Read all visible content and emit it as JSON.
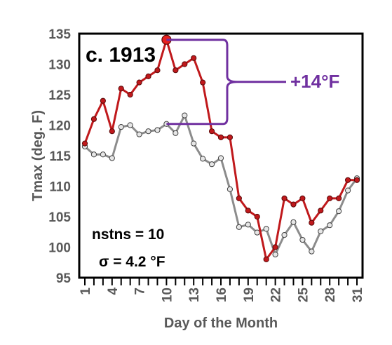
{
  "chart_data": {
    "type": "line",
    "xlabel": "Day of the Month",
    "ylabel": "Tmax (deg. F)",
    "xlim": [
      1,
      31
    ],
    "ylim": [
      95,
      135
    ],
    "x_ticks": [
      1,
      4,
      7,
      10,
      13,
      16,
      19,
      22,
      25,
      28,
      31
    ],
    "y_ticks": [
      95,
      100,
      105,
      110,
      115,
      120,
      125,
      130,
      135
    ],
    "grid": false,
    "x": [
      1,
      2,
      3,
      4,
      5,
      6,
      7,
      8,
      9,
      10,
      11,
      12,
      13,
      14,
      15,
      16,
      17,
      18,
      19,
      20,
      21,
      22,
      23,
      24,
      25,
      26,
      27,
      28,
      29,
      30,
      31
    ],
    "series": [
      {
        "color": "#c0191c",
        "values": [
          117,
          121,
          124,
          119,
          126,
          125,
          127,
          128,
          129,
          134,
          129,
          130,
          131,
          127,
          119,
          118,
          118,
          108,
          106,
          105,
          98,
          100,
          108,
          107,
          108,
          104,
          106,
          108,
          108,
          111,
          111
        ]
      },
      {
        "color": "#8c8c8c",
        "values": [
          116.5,
          115.2,
          115.2,
          114.6,
          119.7,
          120,
          118.5,
          119,
          119.2,
          120.2,
          118.7,
          121.6,
          117,
          114.5,
          113.6,
          114.6,
          109.5,
          103.3,
          103.7,
          102.4,
          103,
          98.8,
          102,
          104.1,
          101.2,
          99.3,
          102.6,
          103.6,
          105.9,
          109.3,
          111.3
        ]
      }
    ],
    "annotations": {
      "era": "c. 1913",
      "diff": "+14°F",
      "nstns": "nstns = 10",
      "sigma": "σ = 4.2 °F"
    },
    "highlight_day": 10,
    "bracket_color": "#7030a0"
  }
}
